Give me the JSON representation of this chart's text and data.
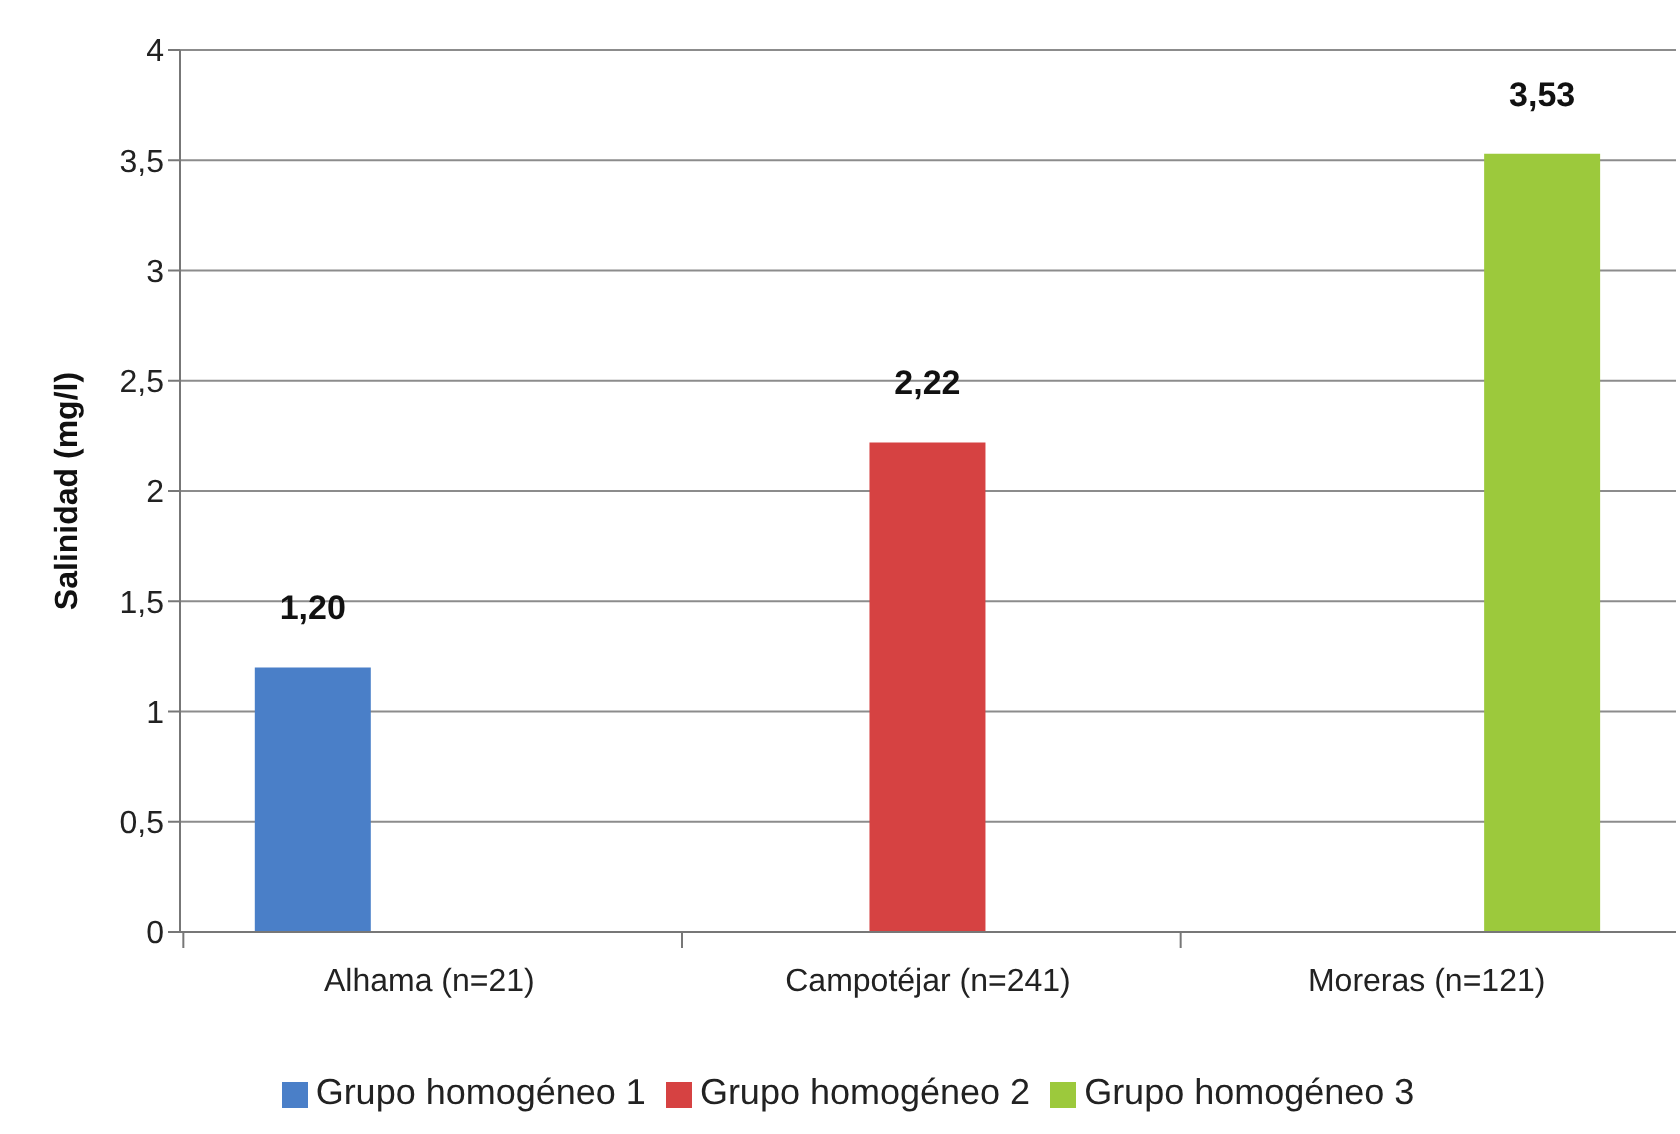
{
  "chart_data": {
    "type": "bar",
    "ylabel": "Salinidad (mg/l)",
    "categories": [
      "Alhama (n=21)",
      "Campotéjar (n=241)",
      "Moreras (n=121)"
    ],
    "series": [
      {
        "name": "Grupo homogéneo 1",
        "color": "#4a7fc8",
        "values": [
          1.2,
          null,
          null
        ],
        "value_labels": [
          "1,20",
          null,
          null
        ]
      },
      {
        "name": "Grupo homogéneo 2",
        "color": "#d64242",
        "values": [
          null,
          2.22,
          null
        ],
        "value_labels": [
          null,
          "2,22",
          null
        ]
      },
      {
        "name": "Grupo homogéneo 3",
        "color": "#9cc93c",
        "values": [
          null,
          null,
          3.53
        ],
        "value_labels": [
          null,
          null,
          "3,53"
        ]
      }
    ],
    "ylim": [
      0,
      4
    ],
    "yticks": [
      0,
      {
        "value": 0.5,
        "label": "0,5"
      },
      1,
      {
        "value": 1.5,
        "label": "1,5"
      },
      2,
      {
        "value": 2.5,
        "label": "2,5"
      },
      3,
      {
        "value": 3.5,
        "label": "3,5"
      },
      4
    ],
    "grid": "y",
    "legend": "bottom"
  }
}
